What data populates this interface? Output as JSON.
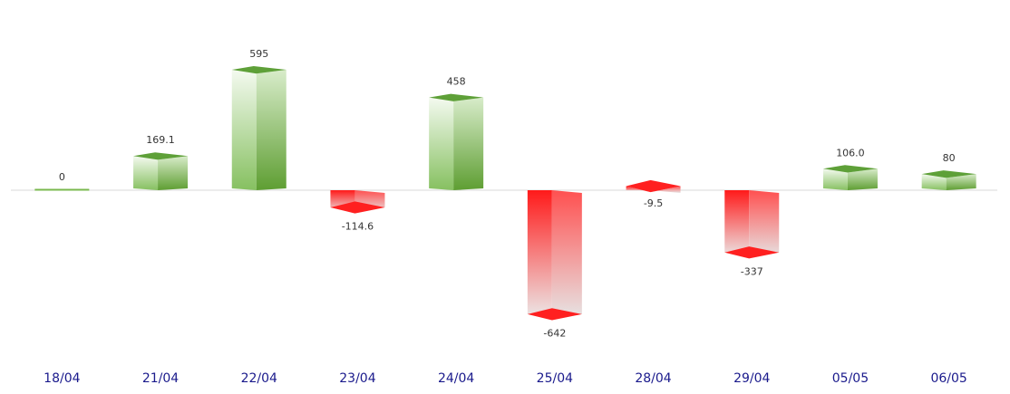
{
  "chart_data": {
    "type": "bar",
    "title": "",
    "xlabel": "",
    "ylabel": "",
    "categories": [
      "18/04",
      "21/04",
      "22/04",
      "23/04",
      "24/04",
      "25/04",
      "28/04",
      "29/04",
      "05/05",
      "06/05"
    ],
    "values": [
      0,
      169.1,
      595,
      -114.6,
      458,
      -642,
      -9.5,
      -337,
      106.0,
      80
    ],
    "value_labels": [
      "0",
      "169.1",
      "595",
      "-114.6",
      "458",
      "-642",
      "-9.5",
      "-337",
      "106.0",
      "80"
    ],
    "ylim": [
      -700,
      700
    ],
    "grid": false,
    "legend": "none",
    "colors": {
      "positive": "#6aab3a",
      "positive_light": "#eef7e8",
      "negative": "#ff1a1a",
      "negative_light": "#ececec",
      "axis": "#d0d0d0",
      "category_text": "#1a1a8c"
    }
  }
}
